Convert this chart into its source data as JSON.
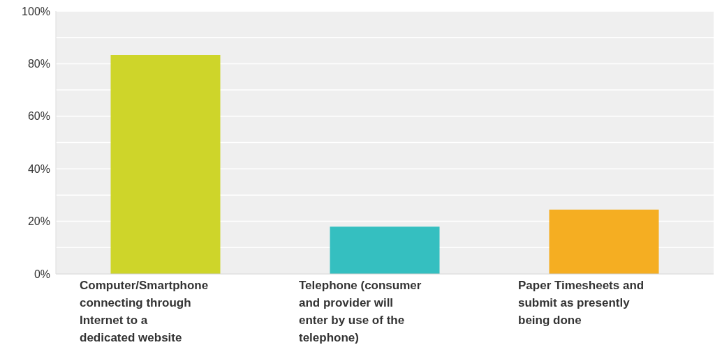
{
  "chart_data": {
    "type": "bar",
    "categories": [
      "Computer/Smartphone connecting through Internet to a dedicated website",
      "Telephone (consumer and provider will enter by use of the telephone)",
      "Paper Timesheets and submit as presently being done"
    ],
    "values": [
      83.3,
      18.0,
      24.5
    ],
    "colors": [
      "#ced52a",
      "#35bfc0",
      "#f5ae22"
    ],
    "ylim": [
      0,
      100
    ],
    "yticks": [
      {
        "value": 0,
        "label": "0%"
      },
      {
        "value": 10,
        "label": null
      },
      {
        "value": 20,
        "label": "20%"
      },
      {
        "value": 30,
        "label": null
      },
      {
        "value": 40,
        "label": "40%"
      },
      {
        "value": 50,
        "label": null
      },
      {
        "value": 60,
        "label": "60%"
      },
      {
        "value": 70,
        "label": null
      },
      {
        "value": 80,
        "label": "80%"
      },
      {
        "value": 90,
        "label": null
      },
      {
        "value": 100,
        "label": "100%"
      }
    ],
    "grid": "y"
  }
}
